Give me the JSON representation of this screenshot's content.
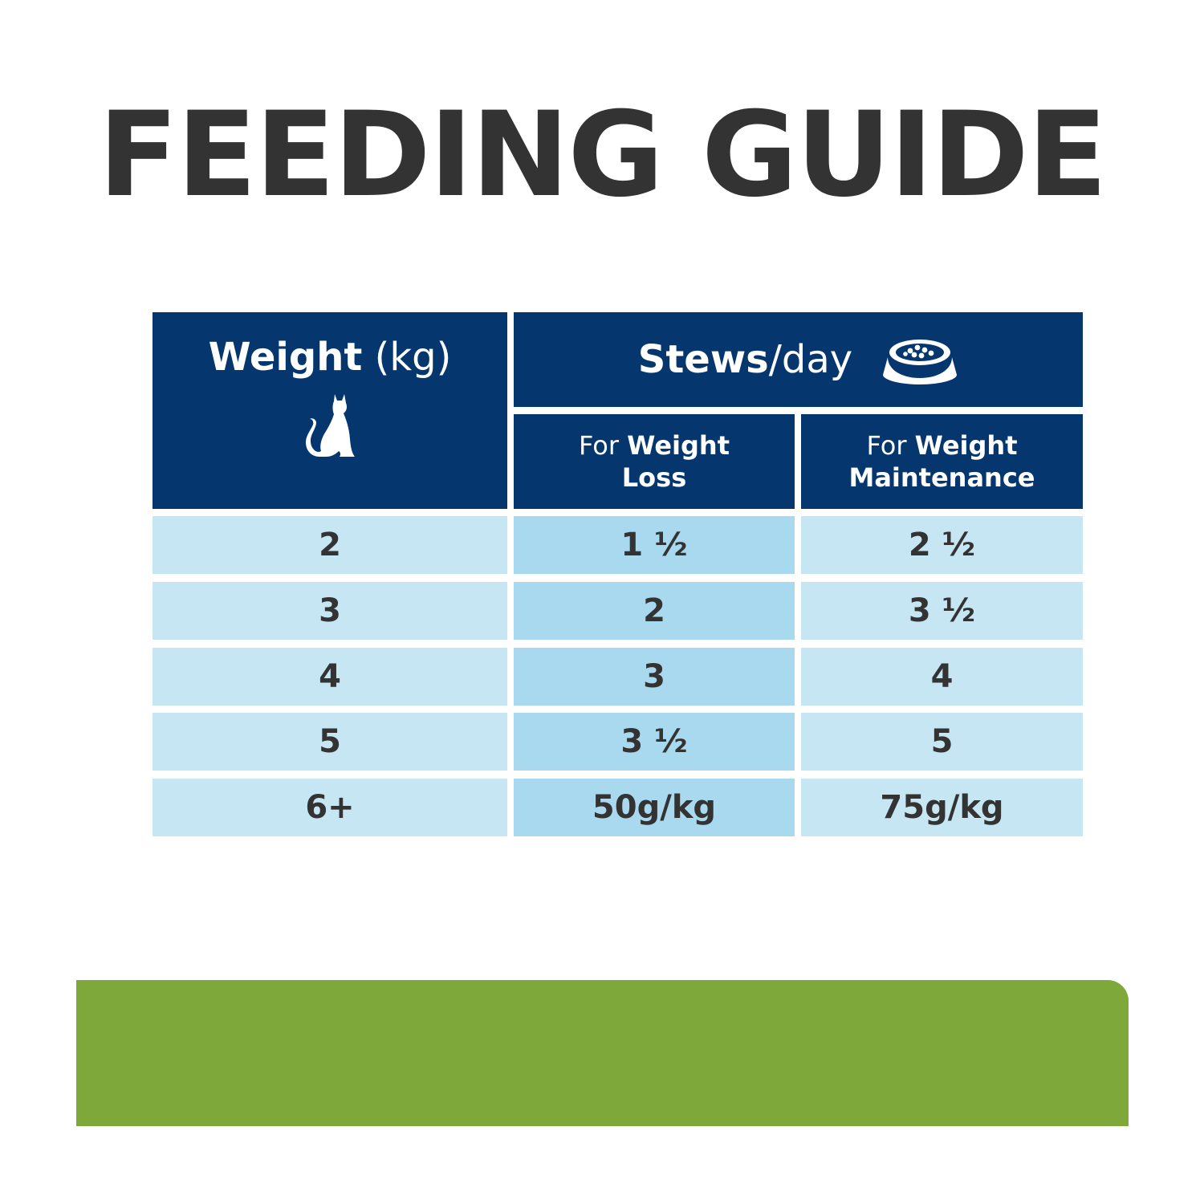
{
  "title": "FEEDING GUIDE",
  "colors": {
    "header_bg": "#05366e",
    "row_light": "#c6e6f4",
    "row_mid": "#a9d9ef",
    "footer_bar": "#7fa83a",
    "title_text": "#333333"
  },
  "table": {
    "weight_header": {
      "bold": "Weight",
      "normal": " (kg)",
      "icon": "cat-icon"
    },
    "stews_header": {
      "bold": "Stews",
      "normal": "/day",
      "icon": "bowl-icon"
    },
    "loss_header": {
      "prefix": "For ",
      "bold_line1": "Weight",
      "bold_line2": "Loss"
    },
    "maint_header": {
      "prefix": "For ",
      "bold_line1": "Weight",
      "bold_line2": "Maintenance"
    },
    "rows": [
      {
        "weight": "2",
        "loss": "1 ½",
        "maint": "2 ½"
      },
      {
        "weight": "3",
        "loss": "2",
        "maint": "3 ½"
      },
      {
        "weight": "4",
        "loss": "3",
        "maint": "4"
      },
      {
        "weight": "5",
        "loss": "3 ½",
        "maint": "5"
      },
      {
        "weight": "6+",
        "loss": "50g/kg",
        "maint": "75g/kg"
      }
    ]
  }
}
